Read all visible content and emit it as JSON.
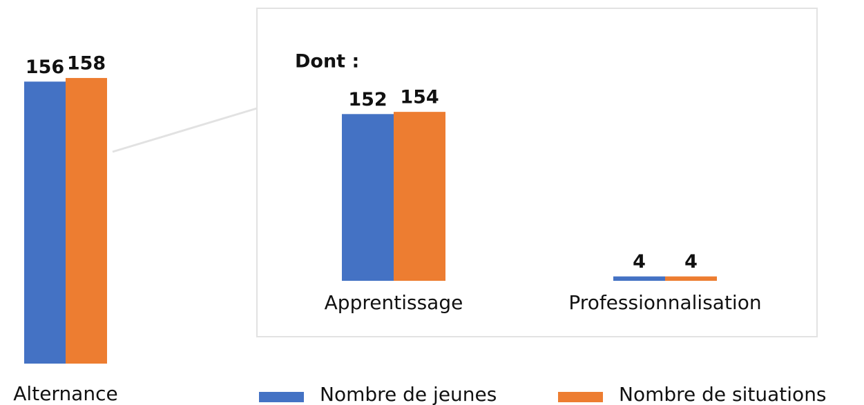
{
  "chart_data": [
    {
      "type": "bar",
      "categories": [
        "Alternance"
      ],
      "series": [
        {
          "name": "Nombre de jeunes",
          "color": "#4472c4",
          "values": [
            156
          ]
        },
        {
          "name": "Nombre de situations",
          "color": "#ed7d31",
          "values": [
            158
          ]
        }
      ]
    },
    {
      "type": "bar",
      "title": "Dont :",
      "categories": [
        "Apprentissage",
        "Professionnalisation"
      ],
      "series": [
        {
          "values": [
            152,
            4
          ]
        },
        {
          "values": [
            154,
            4
          ]
        }
      ]
    }
  ]
}
